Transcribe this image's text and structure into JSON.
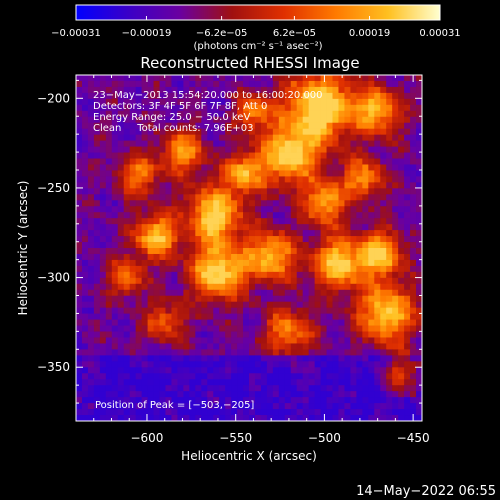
{
  "chart_data": {
    "type": "heatmap",
    "title": "Reconstructed RHESSI Image",
    "xlabel": "Heliocentric X (arcsec)",
    "ylabel": "Heliocentric Y (arcsec)",
    "xlim": [
      -640,
      -445
    ],
    "ylim": [
      -380,
      -187
    ],
    "x_ticks": [
      -600,
      -550,
      -500,
      -450
    ],
    "x_tick_labels": [
      "−600",
      "−550",
      "−500",
      "−450"
    ],
    "y_ticks": [
      -200,
      -250,
      -300,
      -350
    ],
    "y_tick_labels": [
      "−200",
      "−250",
      "−300",
      "−350"
    ],
    "colorbar": {
      "min": -0.00031,
      "max": 0.00031,
      "tick_values": [
        -0.00031,
        -0.00019,
        -6.2e-05,
        6.2e-05,
        0.00019,
        0.00031
      ],
      "tick_labels": [
        "−0.00031",
        "−0.00019",
        "−6.2e−05",
        "6.2e−05",
        "0.00019",
        "0.00031"
      ],
      "unit_label": "(photons cm⁻² s⁻¹ asec⁻²)",
      "colors": [
        "#0000ff",
        "#3a00c8",
        "#6a00a0",
        "#a01010",
        "#e03000",
        "#ff7a00",
        "#ffc020",
        "#ffffd0"
      ]
    },
    "annotations": [
      "23−May−2013 15:54:20.000 to 16:00:20.000",
      "Detectors: 3F 4F 5F 6F 7F 8F, Att 0",
      "Energy Range: 25.0 − 50.0 keV",
      "Clean     Total counts: 7.96E+03"
    ],
    "peak_label": "Position of Peak = [−503,−205]",
    "peak_position": [
      -503,
      -205
    ],
    "grid": false
  },
  "footer": {
    "timestamp": "14−May−2022 06:55"
  }
}
